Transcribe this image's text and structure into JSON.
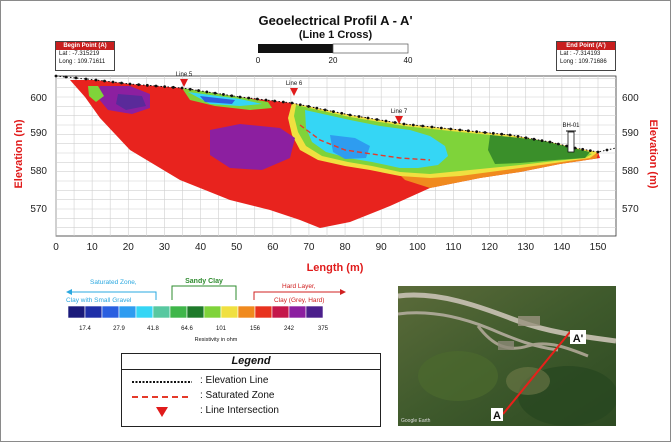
{
  "title": "Geoelectrical Profil A - A'",
  "subtitle": "(Line 1 Cross)",
  "scale_bar": {
    "labels": [
      "0",
      "20",
      "40"
    ]
  },
  "begin_point": {
    "header": "Begin Point (A)",
    "lat": "Lat   : -7.315219",
    "long": "Long : 109.71611"
  },
  "end_point": {
    "header": "End Point (A')",
    "lat": "Lat   : -7.314193",
    "long": "Long : 109.71686"
  },
  "y_axis_label": "Elevation (m)",
  "x_axis_label": "Length (m)",
  "x_ticks": [
    "0",
    "10",
    "20",
    "30",
    "40",
    "50",
    "60",
    "70",
    "80",
    "90",
    "100",
    "110",
    "120",
    "130",
    "140",
    "150"
  ],
  "y_ticks": [
    "600",
    "590",
    "580",
    "570"
  ],
  "line_markers": [
    {
      "label": "Line 5",
      "x": 35
    },
    {
      "label": "Line 6",
      "x": 65
    },
    {
      "label": "Line 7",
      "x": 93
    }
  ],
  "borehole_label": "BH-01",
  "resistivity": {
    "zone_saturated": "Saturated Zone,\nClay with Small Gravel",
    "zone_saturated_lines": [
      "Saturated Zone,",
      "Clay with Small Gravel"
    ],
    "zone_sandy": "Sandy Clay",
    "zone_hard_lines": [
      "Hard Layer,",
      "Clay (Grey, Hard)"
    ],
    "values": [
      "17.4",
      "27.9",
      "41.8",
      "64.6",
      "101",
      "156",
      "242",
      "375"
    ],
    "caption": "Resistivity in ohm",
    "colors": [
      "#1a1a7a",
      "#1f2fa8",
      "#2a5fe0",
      "#2e9cf0",
      "#35d6f5",
      "#58c8a0",
      "#3fb64a",
      "#1e7a2a",
      "#7fd33a",
      "#f0e040",
      "#f08a1e",
      "#e8321e",
      "#c4164a",
      "#8c1fa0",
      "#4b1f8c"
    ]
  },
  "legend": {
    "header": "Legend",
    "items": [
      {
        "label": ": Elevation Line"
      },
      {
        "label": ": Saturated Zone"
      },
      {
        "label": ": Line Intersection"
      }
    ]
  },
  "map": {
    "label_a": "A",
    "label_a_prime": "A'",
    "credit": "Google Earth"
  },
  "colors": {
    "axis_label": "#e01b1b",
    "saturated_line": "#e53a2a",
    "marker": "#e01b1b"
  }
}
